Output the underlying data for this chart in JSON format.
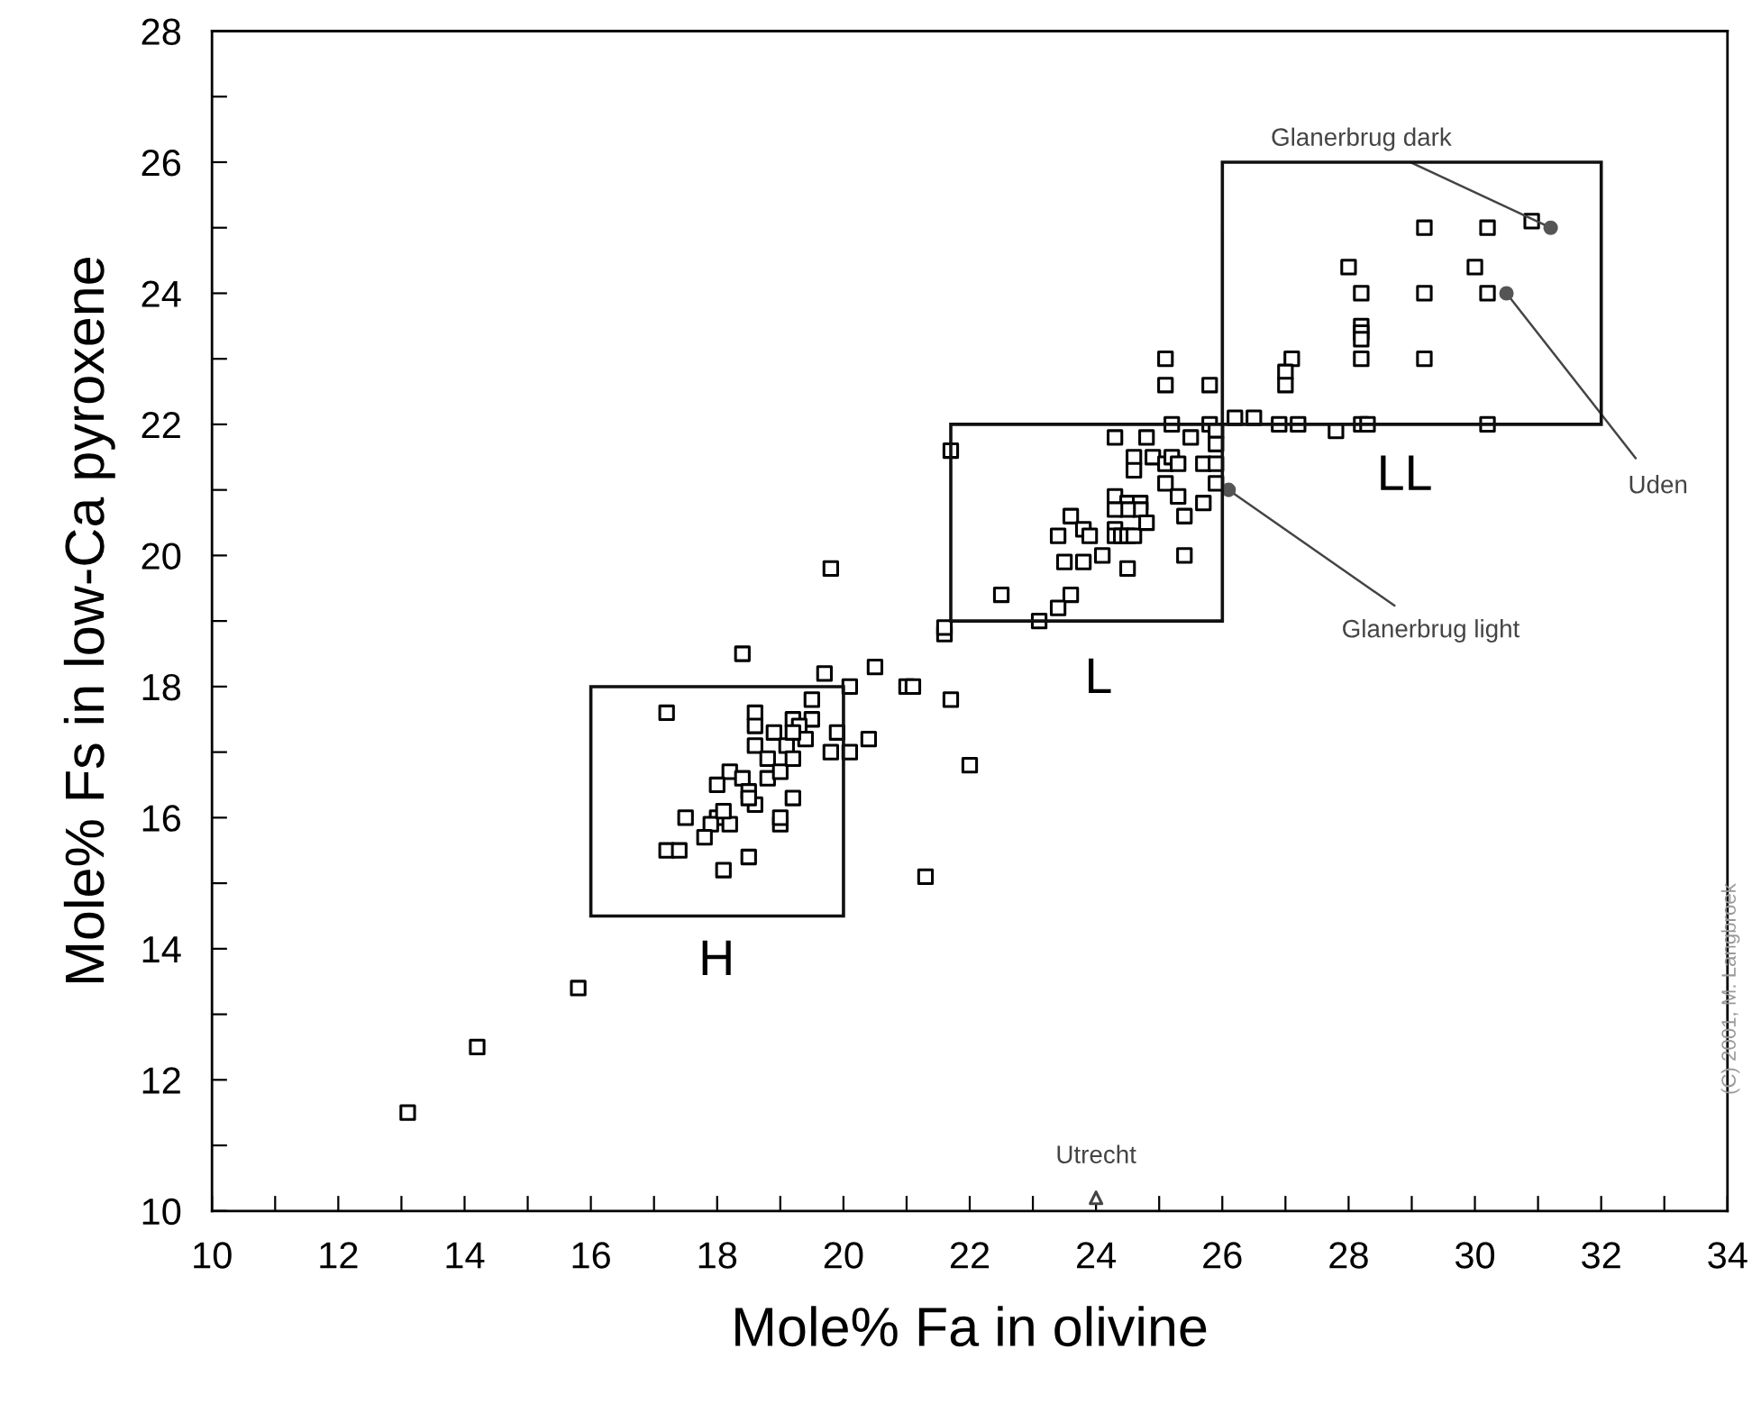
{
  "chart_data": {
    "type": "scatter",
    "xlabel": "Mole% Fa in olivine",
    "ylabel": "Mole% Fs in low-Ca pyroxene",
    "xlim": [
      10,
      34
    ],
    "ylim": [
      10,
      28
    ],
    "xticks": [
      10,
      {
        "value": 11,
        "label": null
      },
      12,
      {
        "value": 13,
        "label": null
      },
      14,
      {
        "value": 15,
        "label": null
      },
      16,
      {
        "value": 17,
        "label": null
      },
      18,
      {
        "value": 19,
        "label": null
      },
      20,
      {
        "value": 21,
        "label": null
      },
      22,
      {
        "value": 23,
        "label": null
      },
      24,
      {
        "value": 25,
        "label": null
      },
      26,
      {
        "value": 27,
        "label": null
      },
      28,
      {
        "value": 29,
        "label": null
      },
      30,
      {
        "value": 31,
        "label": null
      },
      32,
      {
        "value": 33,
        "label": null
      },
      34
    ],
    "yticks": [
      10,
      {
        "value": 11,
        "label": null
      },
      12,
      {
        "value": 13,
        "label": null
      },
      14,
      {
        "value": 15,
        "label": null
      },
      16,
      {
        "value": 17,
        "label": null
      },
      18,
      {
        "value": 19,
        "label": null
      },
      20,
      {
        "value": 21,
        "label": null
      },
      22,
      {
        "value": 23,
        "label": null
      },
      24,
      {
        "value": 25,
        "label": null
      },
      26,
      {
        "value": 27,
        "label": null
      },
      28
    ],
    "grid": false,
    "legend": false,
    "series": [
      {
        "marker": "square",
        "color": "#000000",
        "x": [
          13.1,
          14.2,
          15.8,
          18.4,
          19.7,
          20.5,
          20.1,
          21.0,
          17.2,
          18.6,
          18.6,
          19.2,
          19.5,
          19.5,
          18.9,
          19.3,
          19.4,
          19.9,
          20.4,
          20.1,
          19.8,
          18.6,
          19.1,
          19.2,
          18.2,
          18.0,
          18.4,
          18.8,
          18.8,
          19.0,
          19.2,
          18.5,
          18.6,
          18.5,
          19.2,
          17.5,
          18.0,
          18.2,
          17.9,
          18.1,
          19.0,
          19.0,
          17.8,
          17.2,
          17.4,
          18.5,
          18.1,
          19.8,
          21.1,
          21.7,
          22.0,
          21.3,
          21.6,
          25.1,
          25.1,
          25.8,
          21.7,
          25.2,
          25.8,
          26.2,
          26.5,
          25.9,
          24.3,
          24.8,
          25.5,
          24.6,
          24.6,
          24.9,
          25.1,
          25.2,
          25.3,
          25.7,
          25.9,
          25.9,
          25.9,
          25.1,
          25.3,
          25.7,
          25.4,
          24.3,
          24.5,
          24.7,
          24.7,
          24.5,
          24.3,
          23.6,
          23.4,
          23.8,
          23.9,
          24.3,
          24.3,
          24.4,
          24.5,
          24.6,
          24.8,
          23.5,
          23.8,
          24.1,
          24.5,
          25.4,
          22.5,
          23.6,
          23.4,
          23.1,
          21.6,
          29.2,
          30.2,
          30.9,
          28.0,
          30.0,
          28.2,
          29.2,
          30.2,
          28.2,
          28.2,
          28.2,
          28.2,
          29.2,
          27.1,
          27.0,
          27.0,
          26.9,
          27.2,
          27.8,
          28.2,
          28.3,
          30.2
        ],
        "values": [
          11.5,
          12.5,
          13.4,
          18.5,
          18.2,
          18.3,
          18.0,
          18.0,
          17.6,
          17.6,
          17.4,
          17.5,
          17.8,
          17.5,
          17.3,
          17.4,
          17.2,
          17.3,
          17.2,
          17.0,
          17.0,
          17.1,
          17.1,
          17.3,
          16.7,
          16.5,
          16.6,
          16.6,
          16.9,
          16.7,
          16.9,
          16.4,
          16.2,
          16.3,
          16.3,
          16.0,
          16.0,
          15.9,
          15.9,
          16.1,
          15.9,
          16.0,
          15.7,
          15.5,
          15.5,
          15.4,
          15.2,
          19.8,
          18.0,
          17.8,
          16.8,
          15.1,
          18.8,
          23.0,
          22.6,
          22.6,
          21.6,
          22.0,
          22.0,
          22.1,
          22.1,
          21.9,
          21.8,
          21.8,
          21.8,
          21.5,
          21.3,
          21.5,
          21.4,
          21.5,
          21.4,
          21.4,
          21.7,
          21.4,
          21.1,
          21.1,
          20.9,
          20.8,
          20.6,
          20.9,
          20.8,
          20.8,
          20.7,
          20.7,
          20.7,
          20.6,
          20.3,
          20.4,
          20.3,
          20.4,
          20.3,
          20.3,
          20.3,
          20.3,
          20.5,
          19.9,
          19.9,
          20.0,
          19.8,
          20.0,
          19.4,
          19.4,
          19.2,
          19.0,
          18.9,
          25.0,
          25.0,
          25.1,
          24.4,
          24.4,
          24.0,
          24.0,
          24.0,
          23.5,
          23.4,
          23.3,
          23.0,
          23.0,
          23.0,
          22.8,
          22.6,
          22.0,
          22.0,
          21.9,
          22.0,
          22.0,
          22.0
        ]
      },
      {
        "marker": "circle",
        "color": "#555555",
        "x": [
          31.2,
          30.5,
          26.1
        ],
        "values": [
          25.0,
          24.0,
          21.0
        ]
      },
      {
        "marker": "triangle",
        "color": "#444444",
        "x": [
          24.0
        ],
        "values": [
          10.2
        ]
      }
    ],
    "annotations": [
      "H",
      "L",
      "LL",
      {
        "text": "Glanerbrug dark",
        "x": 31.2,
        "y": 25.0
      },
      {
        "text": "Uden",
        "x": 30.5,
        "y": 24.0
      },
      {
        "text": "Glanerbrug light",
        "x": 26.1,
        "y": 21.0
      },
      {
        "text": "Utrecht",
        "x": 24.0,
        "y": 10.2
      },
      "(C) 2001, M. Langbroek"
    ]
  }
}
